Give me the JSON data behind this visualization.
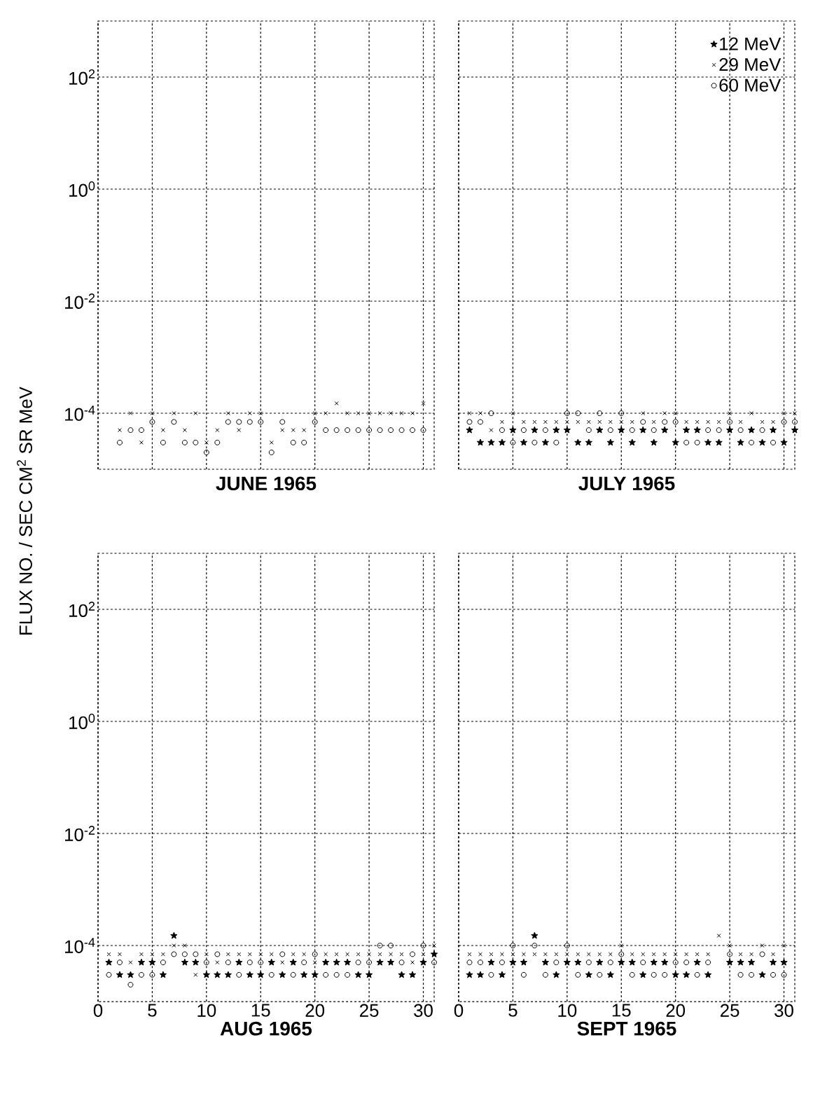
{
  "chart_data": [
    {
      "type": "scatter",
      "xlabel": "JUNE 1965",
      "ylabel": "FLUX NO. / SEC CM$^{2}$ SR MeV",
      "log": "y",
      "grid": true,
      "tick_labels": "y",
      "xlim": [
        0,
        31
      ],
      "xticks": [
        0,
        5,
        10,
        15,
        20,
        25,
        30
      ],
      "ylim": [
        1e-05,
        1000
      ],
      "yticks": [
        {
          "value": 0.0001,
          "label": "10$^{-4}$"
        },
        {
          "value": 0.01,
          "label": "10$^{-2}$"
        },
        {
          "value": 1,
          "label": "10$^{0}$"
        },
        {
          "value": 100,
          "label": "10$^{2}$"
        }
      ],
      "x": [
        2,
        3,
        4,
        5,
        6,
        7,
        8,
        9,
        10,
        11,
        12,
        13,
        14,
        15,
        16,
        17,
        18,
        19,
        20,
        21,
        22,
        23,
        24,
        25,
        26,
        27,
        28,
        29,
        30
      ],
      "series": [
        {
          "color": "#000000",
          "marker": "cross",
          "values": [
            5e-05,
            0.0001,
            3e-05,
            0.0001,
            5e-05,
            0.0001,
            5e-05,
            0.0001,
            3e-05,
            5e-05,
            0.0001,
            5e-05,
            0.0001,
            0.0001,
            3e-05,
            5e-05,
            5e-05,
            5e-05,
            0.0001,
            0.0001,
            0.00015,
            0.0001,
            0.0001,
            0.0001,
            0.0001,
            0.0001,
            0.0001,
            0.0001,
            0.00015
          ]
        },
        {
          "color": "#000000",
          "marker": "circle",
          "values": [
            3e-05,
            5e-05,
            5e-05,
            7e-05,
            3e-05,
            7e-05,
            3e-05,
            3e-05,
            2e-05,
            3e-05,
            7e-05,
            7e-05,
            7e-05,
            7e-05,
            2e-05,
            7e-05,
            3e-05,
            3e-05,
            7e-05,
            5e-05,
            5e-05,
            5e-05,
            5e-05,
            5e-05,
            5e-05,
            5e-05,
            5e-05,
            5e-05,
            5e-05
          ]
        }
      ]
    },
    {
      "type": "scatter",
      "xlabel": "JULY 1965",
      "log": "y",
      "grid": true,
      "tick_labels": false,
      "legend": "top right",
      "xlim": [
        0,
        31
      ],
      "xticks": [
        0,
        5,
        10,
        15,
        20,
        25,
        30
      ],
      "ylim": [
        1e-05,
        1000
      ],
      "yticks": [
        {
          "value": 0.0001,
          "label": null
        },
        {
          "value": 0.01,
          "label": null
        },
        {
          "value": 1,
          "label": null
        },
        {
          "value": 100,
          "label": null
        }
      ],
      "x": [
        1,
        2,
        3,
        4,
        5,
        6,
        7,
        8,
        9,
        10,
        11,
        12,
        13,
        14,
        15,
        16,
        17,
        18,
        19,
        20,
        21,
        22,
        23,
        24,
        25,
        26,
        27,
        28,
        29,
        30,
        31
      ],
      "series": [
        {
          "name": "12 MeV",
          "color": "#000000",
          "marker": "star",
          "values": [
            5e-05,
            3e-05,
            3e-05,
            3e-05,
            5e-05,
            3e-05,
            5e-05,
            3e-05,
            5e-05,
            5e-05,
            3e-05,
            3e-05,
            5e-05,
            3e-05,
            5e-05,
            3e-05,
            5e-05,
            3e-05,
            5e-05,
            3e-05,
            5e-05,
            5e-05,
            3e-05,
            3e-05,
            5e-05,
            3e-05,
            5e-05,
            3e-05,
            5e-05,
            3e-05,
            5e-05
          ]
        },
        {
          "name": "29 MeV",
          "color": "#000000",
          "marker": "cross",
          "values": [
            0.0001,
            0.0001,
            5e-05,
            7e-05,
            0.0001,
            7e-05,
            7e-05,
            7e-05,
            7e-05,
            7e-05,
            7e-05,
            7e-05,
            7e-05,
            7e-05,
            7e-05,
            7e-05,
            0.0001,
            7e-05,
            0.0001,
            0.0001,
            7e-05,
            7e-05,
            7e-05,
            7e-05,
            0.0001,
            7e-05,
            0.0001,
            7e-05,
            7e-05,
            0.0001,
            0.0001
          ]
        },
        {
          "name": "60 MeV",
          "color": "#000000",
          "marker": "circle",
          "values": [
            7e-05,
            7e-05,
            0.0001,
            5e-05,
            3e-05,
            5e-05,
            3e-05,
            5e-05,
            3e-05,
            0.0001,
            0.0001,
            5e-05,
            0.0001,
            5e-05,
            0.0001,
            5e-05,
            7e-05,
            5e-05,
            7e-05,
            7e-05,
            3e-05,
            3e-05,
            5e-05,
            5e-05,
            7e-05,
            5e-05,
            3e-05,
            5e-05,
            3e-05,
            7e-05,
            7e-05
          ]
        }
      ]
    },
    {
      "type": "scatter",
      "xlabel": "AUG 1965",
      "log": "y",
      "grid": true,
      "xlim": [
        0,
        31
      ],
      "xticks": [
        0,
        5,
        10,
        15,
        20,
        25,
        30
      ],
      "ylim": [
        1e-05,
        1000
      ],
      "yticks": [
        {
          "value": 0.0001,
          "label": "10$^{-4}$"
        },
        {
          "value": 0.01,
          "label": "10$^{-2}$"
        },
        {
          "value": 1,
          "label": "10$^{0}$"
        },
        {
          "value": 100,
          "label": "10$^{2}$"
        }
      ],
      "x": [
        1,
        2,
        3,
        4,
        5,
        6,
        7,
        8,
        9,
        10,
        11,
        12,
        13,
        14,
        15,
        16,
        17,
        18,
        19,
        20,
        21,
        22,
        23,
        24,
        25,
        26,
        27,
        28,
        29,
        30,
        31
      ],
      "series": [
        {
          "color": "#000000",
          "marker": "star",
          "values": [
            5e-05,
            3e-05,
            3e-05,
            5e-05,
            5e-05,
            3e-05,
            0.00015,
            5e-05,
            5e-05,
            3e-05,
            3e-05,
            3e-05,
            5e-05,
            3e-05,
            3e-05,
            5e-05,
            3e-05,
            5e-05,
            3e-05,
            3e-05,
            5e-05,
            5e-05,
            5e-05,
            3e-05,
            3e-05,
            5e-05,
            5e-05,
            3e-05,
            3e-05,
            5e-05,
            7e-05
          ]
        },
        {
          "color": "#000000",
          "marker": "cross",
          "values": [
            7e-05,
            7e-05,
            5e-05,
            7e-05,
            7e-05,
            7e-05,
            0.0001,
            0.0001,
            3e-05,
            7e-05,
            5e-05,
            7e-05,
            7e-05,
            7e-05,
            7e-05,
            7e-05,
            5e-05,
            7e-05,
            7e-05,
            5e-05,
            7e-05,
            7e-05,
            7e-05,
            7e-05,
            7e-05,
            7e-05,
            7e-05,
            7e-05,
            5e-05,
            7e-05,
            0.0001
          ]
        },
        {
          "color": "#000000",
          "marker": "circle",
          "values": [
            3e-05,
            5e-05,
            2e-05,
            3e-05,
            3e-05,
            5e-05,
            7e-05,
            7e-05,
            7e-05,
            5e-05,
            7e-05,
            5e-05,
            3e-05,
            5e-05,
            5e-05,
            3e-05,
            7e-05,
            3e-05,
            5e-05,
            7e-05,
            3e-05,
            3e-05,
            3e-05,
            5e-05,
            5e-05,
            0.0001,
            0.0001,
            5e-05,
            7e-05,
            0.0001,
            5e-05
          ]
        }
      ]
    },
    {
      "type": "scatter",
      "xlabel": "SEPT 1965",
      "log": "y",
      "grid": true,
      "tick_labels": "x",
      "xlim": [
        0,
        31
      ],
      "xticks": [
        0,
        5,
        10,
        15,
        20,
        25,
        30
      ],
      "ylim": [
        1e-05,
        1000
      ],
      "yticks": [
        {
          "value": 0.0001,
          "label": null
        },
        {
          "value": 0.01,
          "label": null
        },
        {
          "value": 1,
          "label": null
        },
        {
          "value": 100,
          "label": null
        }
      ],
      "x": [
        1,
        2,
        3,
        4,
        5,
        6,
        7,
        8,
        9,
        10,
        11,
        12,
        13,
        14,
        15,
        16,
        17,
        18,
        19,
        20,
        21,
        22,
        23,
        24,
        25,
        26,
        27,
        28,
        29,
        30
      ],
      "series": [
        {
          "color": "#000000",
          "marker": "star",
          "values": [
            3e-05,
            3e-05,
            5e-05,
            3e-05,
            5e-05,
            5e-05,
            0.00015,
            5e-05,
            3e-05,
            5e-05,
            5e-05,
            3e-05,
            5e-05,
            3e-05,
            5e-05,
            5e-05,
            3e-05,
            5e-05,
            5e-05,
            3e-05,
            3e-05,
            5e-05,
            3e-05,
            null,
            5e-05,
            5e-05,
            5e-05,
            3e-05,
            5e-05,
            5e-05
          ]
        },
        {
          "color": "#000000",
          "marker": "cross",
          "values": [
            7e-05,
            7e-05,
            7e-05,
            7e-05,
            7e-05,
            7e-05,
            7e-05,
            7e-05,
            7e-05,
            7e-05,
            7e-05,
            7e-05,
            7e-05,
            7e-05,
            0.0001,
            7e-05,
            7e-05,
            7e-05,
            7e-05,
            7e-05,
            7e-05,
            7e-05,
            7e-05,
            0.00015,
            0.0001,
            7e-05,
            7e-05,
            0.0001,
            7e-05,
            0.0001
          ]
        },
        {
          "color": "#000000",
          "marker": "circle",
          "values": [
            5e-05,
            5e-05,
            3e-05,
            5e-05,
            0.0001,
            3e-05,
            0.0001,
            3e-05,
            5e-05,
            0.0001,
            3e-05,
            5e-05,
            3e-05,
            5e-05,
            7e-05,
            3e-05,
            5e-05,
            3e-05,
            3e-05,
            5e-05,
            5e-05,
            3e-05,
            5e-05,
            null,
            7e-05,
            3e-05,
            3e-05,
            7e-05,
            3e-05,
            3e-05
          ]
        }
      ]
    }
  ]
}
